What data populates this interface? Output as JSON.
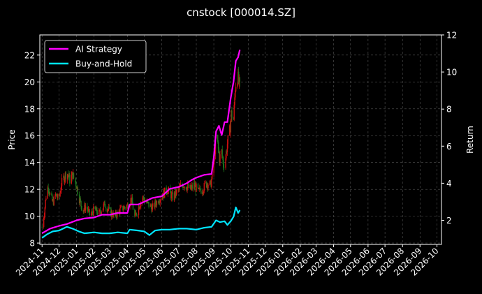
{
  "chart_data": {
    "type": "line",
    "title": "cnstock [000014.SZ]",
    "ylabel_left": "Price",
    "ylabel_right": "Return",
    "ylim_left": [
      7.9,
      23.5
    ],
    "ylim_right": [
      0.7,
      12.0
    ],
    "yticks_left": [
      "8",
      "10",
      "12",
      "14",
      "16",
      "18",
      "20",
      "22"
    ],
    "yticks_right": [
      "2",
      "4",
      "6",
      "8",
      "10",
      "12"
    ],
    "xticks": [
      "2024-11",
      "2024-12",
      "2025-01",
      "2025-02",
      "2025-03",
      "2025-04",
      "2025-05",
      "2025-06",
      "2025-07",
      "2025-08",
      "2025-09",
      "2025-10",
      "2025-11",
      "2025-12",
      "2026-01",
      "2026-02",
      "2026-03",
      "2026-04",
      "2026-05",
      "2026-06",
      "2026-07",
      "2026-08",
      "2026-09",
      "2026-10"
    ],
    "grid": true,
    "legend_position": "top-left",
    "colors": {
      "background": "#000000",
      "ai": "#ff00ff",
      "bh": "#00e5ff",
      "up": "#d11010",
      "down": "#1e7a1e",
      "grid": "#555555"
    },
    "series": [
      {
        "name": "AI Strategy",
        "axis": "right",
        "points": [
          [
            "2024-11-01",
            1.3
          ],
          [
            "2024-11-15",
            1.55
          ],
          [
            "2024-12-01",
            1.7
          ],
          [
            "2024-12-15",
            1.8
          ],
          [
            "2025-01-01",
            2.0
          ],
          [
            "2025-01-15",
            2.1
          ],
          [
            "2025-02-01",
            2.15
          ],
          [
            "2025-02-15",
            2.3
          ],
          [
            "2025-03-01",
            2.3
          ],
          [
            "2025-03-15",
            2.4
          ],
          [
            "2025-04-01",
            2.4
          ],
          [
            "2025-04-05",
            2.85
          ],
          [
            "2025-04-20",
            2.85
          ],
          [
            "2025-05-01",
            3.0
          ],
          [
            "2025-05-15",
            3.2
          ],
          [
            "2025-06-01",
            3.3
          ],
          [
            "2025-06-15",
            3.7
          ],
          [
            "2025-07-01",
            3.8
          ],
          [
            "2025-07-15",
            4.0
          ],
          [
            "2025-07-25",
            4.2
          ],
          [
            "2025-08-01",
            4.3
          ],
          [
            "2025-08-15",
            4.45
          ],
          [
            "2025-08-28",
            4.5
          ],
          [
            "2025-09-01",
            5.4
          ],
          [
            "2025-09-05",
            6.8
          ],
          [
            "2025-09-10",
            7.1
          ],
          [
            "2025-09-15",
            6.6
          ],
          [
            "2025-09-20",
            7.3
          ],
          [
            "2025-09-25",
            7.3
          ],
          [
            "2025-10-01",
            8.6
          ],
          [
            "2025-10-06",
            9.5
          ],
          [
            "2025-10-10",
            10.6
          ],
          [
            "2025-10-14",
            10.8
          ],
          [
            "2025-10-17",
            11.2
          ]
        ]
      },
      {
        "name": "Buy-and-Hold",
        "axis": "right",
        "points": [
          [
            "2024-11-01",
            1.05
          ],
          [
            "2024-11-10",
            1.25
          ],
          [
            "2024-11-20",
            1.4
          ],
          [
            "2024-12-01",
            1.45
          ],
          [
            "2024-12-15",
            1.65
          ],
          [
            "2024-12-25",
            1.55
          ],
          [
            "2025-01-05",
            1.4
          ],
          [
            "2025-01-15",
            1.3
          ],
          [
            "2025-02-01",
            1.35
          ],
          [
            "2025-02-15",
            1.3
          ],
          [
            "2025-03-01",
            1.3
          ],
          [
            "2025-03-15",
            1.35
          ],
          [
            "2025-04-01",
            1.3
          ],
          [
            "2025-04-05",
            1.5
          ],
          [
            "2025-04-20",
            1.45
          ],
          [
            "2025-05-01",
            1.4
          ],
          [
            "2025-05-10",
            1.2
          ],
          [
            "2025-05-20",
            1.45
          ],
          [
            "2025-06-01",
            1.5
          ],
          [
            "2025-06-15",
            1.5
          ],
          [
            "2025-07-01",
            1.55
          ],
          [
            "2025-07-15",
            1.55
          ],
          [
            "2025-08-01",
            1.5
          ],
          [
            "2025-08-15",
            1.6
          ],
          [
            "2025-08-28",
            1.65
          ],
          [
            "2025-09-05",
            2.0
          ],
          [
            "2025-09-12",
            1.9
          ],
          [
            "2025-09-20",
            1.95
          ],
          [
            "2025-09-25",
            1.75
          ],
          [
            "2025-10-01",
            1.95
          ],
          [
            "2025-10-06",
            2.2
          ],
          [
            "2025-10-10",
            2.7
          ],
          [
            "2025-10-14",
            2.4
          ],
          [
            "2025-10-17",
            2.55
          ]
        ]
      },
      {
        "name": "Price (candlesticks)",
        "axis": "left",
        "points": [
          [
            "2024-11-01",
            9.2
          ],
          [
            "2024-11-05",
            10.3
          ],
          [
            "2024-11-08",
            11.5
          ],
          [
            "2024-11-12",
            12.3
          ],
          [
            "2024-11-15",
            11.6
          ],
          [
            "2024-11-20",
            11.0
          ],
          [
            "2024-11-25",
            11.6
          ],
          [
            "2024-12-01",
            11.2
          ],
          [
            "2024-12-05",
            12.4
          ],
          [
            "2024-12-10",
            12.9
          ],
          [
            "2024-12-15",
            13.3
          ],
          [
            "2024-12-20",
            12.7
          ],
          [
            "2024-12-25",
            13.1
          ],
          [
            "2025-01-01",
            12.3
          ],
          [
            "2025-01-06",
            11.3
          ],
          [
            "2025-01-12",
            10.4
          ],
          [
            "2025-01-18",
            10.8
          ],
          [
            "2025-01-25",
            10.0
          ],
          [
            "2025-02-01",
            10.5
          ],
          [
            "2025-02-10",
            10.2
          ],
          [
            "2025-02-20",
            10.9
          ],
          [
            "2025-03-01",
            10.3
          ],
          [
            "2025-03-10",
            10.0
          ],
          [
            "2025-03-20",
            10.5
          ],
          [
            "2025-04-01",
            10.8
          ],
          [
            "2025-04-08",
            11.3
          ],
          [
            "2025-04-14",
            9.9
          ],
          [
            "2025-04-20",
            10.6
          ],
          [
            "2025-04-28",
            11.4
          ],
          [
            "2025-05-05",
            11.0
          ],
          [
            "2025-05-15",
            10.6
          ],
          [
            "2025-05-25",
            11.2
          ],
          [
            "2025-06-01",
            11.5
          ],
          [
            "2025-06-10",
            12.0
          ],
          [
            "2025-06-20",
            11.4
          ],
          [
            "2025-07-01",
            12.0
          ],
          [
            "2025-07-08",
            12.4
          ],
          [
            "2025-07-15",
            12.2
          ],
          [
            "2025-07-22",
            12.0
          ],
          [
            "2025-07-28",
            12.3
          ],
          [
            "2025-08-05",
            11.8
          ],
          [
            "2025-08-12",
            12.0
          ],
          [
            "2025-08-20",
            12.5
          ],
          [
            "2025-08-26",
            12.3
          ],
          [
            "2025-08-29",
            12.9
          ],
          [
            "2025-09-02",
            14.5
          ],
          [
            "2025-09-05",
            15.9
          ],
          [
            "2025-09-08",
            15.3
          ],
          [
            "2025-09-11",
            14.3
          ],
          [
            "2025-09-15",
            14.8
          ],
          [
            "2025-09-18",
            13.8
          ],
          [
            "2025-09-22",
            14.4
          ],
          [
            "2025-09-25",
            15.4
          ],
          [
            "2025-09-29",
            16.3
          ],
          [
            "2025-10-02",
            17.6
          ],
          [
            "2025-10-06",
            17.2
          ],
          [
            "2025-10-09",
            19.6
          ],
          [
            "2025-10-12",
            20.6
          ],
          [
            "2025-10-15",
            20.0
          ],
          [
            "2025-10-17",
            19.5
          ]
        ]
      }
    ]
  }
}
